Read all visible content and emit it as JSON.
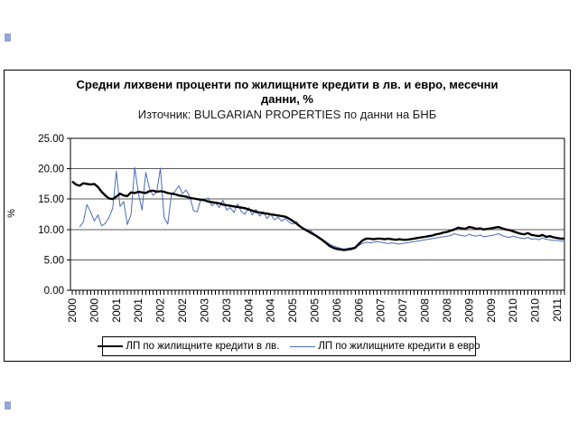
{
  "header": {
    "title_line1": "Средни лихвени проценти по жилищните кредити в лв. и евро, месечни",
    "title_line2": "данни, %",
    "source_line": "Източник: BULGARIAN PROPERTIES по данни на БНБ"
  },
  "y_axis_title": "%",
  "colors": {
    "bgn_line": "#000000",
    "eur_line": "#4a6bb5",
    "gridline": "#595959",
    "frame": "#000000"
  },
  "chart_data": {
    "type": "line",
    "title": "Средни лихвени проценти по жилищните кредити в лв. и евро, месечни данни, %",
    "subtitle": "Източник: BULGARIAN PROPERTIES по данни на БНБ",
    "xlabel": "",
    "ylabel": "%",
    "ylim": [
      0,
      25
    ],
    "ytick_step": 5,
    "ytick_labels": [
      "0.00",
      "5.00",
      "10.00",
      "15.00",
      "20.00",
      "25.00"
    ],
    "grid": "horizontal",
    "legend_position": "bottom",
    "x_unit": "month",
    "x_start": "2000-01",
    "x_end": "2011-03",
    "xtick_every_months": 6,
    "xtick_labels": [
      "2000",
      "2000",
      "2001",
      "2001",
      "2002",
      "2002",
      "2003",
      "2003",
      "2004",
      "2004",
      "2005",
      "2005",
      "2006",
      "2006",
      "2007",
      "2007",
      "2008",
      "2008",
      "2009",
      "2009",
      "2010",
      "2010",
      "2011"
    ],
    "series": [
      {
        "name": "ЛП по жилищните кредити в лв.",
        "color": "#000000",
        "width": 2.4,
        "values": [
          17.9,
          17.4,
          17.2,
          17.6,
          17.5,
          17.4,
          17.5,
          17.0,
          16.2,
          15.6,
          15.1,
          15.0,
          15.4,
          15.9,
          15.6,
          15.5,
          16.1,
          16.0,
          16.2,
          16.1,
          16.0,
          16.3,
          16.4,
          16.2,
          16.3,
          16.2,
          16.0,
          15.9,
          15.8,
          15.6,
          15.5,
          15.4,
          15.2,
          15.1,
          15.0,
          14.9,
          14.8,
          14.6,
          14.5,
          14.4,
          14.3,
          14.1,
          14.0,
          13.9,
          13.8,
          13.7,
          13.6,
          13.5,
          13.3,
          13.1,
          12.9,
          12.8,
          12.7,
          12.6,
          12.5,
          12.4,
          12.3,
          12.2,
          12.1,
          11.8,
          11.4,
          11.0,
          10.5,
          10.1,
          9.8,
          9.4,
          9.1,
          8.7,
          8.3,
          7.8,
          7.3,
          7.0,
          6.8,
          6.7,
          6.6,
          6.7,
          6.8,
          7.0,
          7.6,
          8.2,
          8.5,
          8.5,
          8.4,
          8.5,
          8.5,
          8.4,
          8.5,
          8.4,
          8.3,
          8.4,
          8.3,
          8.3,
          8.4,
          8.5,
          8.6,
          8.7,
          8.8,
          8.9,
          9.0,
          9.2,
          9.3,
          9.5,
          9.6,
          9.8,
          10.0,
          10.3,
          10.2,
          10.1,
          10.4,
          10.3,
          10.1,
          10.2,
          10.0,
          10.1,
          10.2,
          10.3,
          10.4,
          10.2,
          10.0,
          9.9,
          9.7,
          9.5,
          9.3,
          9.2,
          9.4,
          9.1,
          9.0,
          8.9,
          9.1,
          8.8,
          8.9,
          8.7,
          8.6,
          8.5,
          8.5
        ]
      },
      {
        "name": "ЛП по жилищните кредити в евро",
        "color": "#4a6bb5",
        "width": 1,
        "values": [
          null,
          null,
          10.4,
          11.2,
          14.1,
          12.9,
          11.4,
          12.4,
          10.6,
          11.0,
          12.0,
          13.5,
          19.6,
          13.8,
          14.6,
          10.8,
          12.5,
          20.2,
          16.0,
          13.2,
          19.4,
          16.8,
          15.6,
          16.2,
          20.1,
          12.0,
          10.9,
          15.8,
          16.3,
          17.2,
          15.9,
          16.5,
          15.4,
          13.1,
          12.9,
          15.0,
          14.8,
          15.2,
          13.9,
          14.4,
          13.6,
          14.8,
          13.2,
          13.6,
          12.8,
          14.2,
          13.0,
          12.5,
          13.6,
          12.4,
          13.3,
          12.2,
          12.9,
          11.8,
          12.5,
          11.6,
          12.0,
          11.4,
          11.8,
          11.2,
          10.9,
          11.3,
          10.4,
          10.0,
          9.6,
          9.8,
          9.2,
          8.8,
          8.4,
          8.0,
          7.6,
          7.3,
          7.1,
          6.9,
          6.8,
          6.9,
          7.0,
          7.1,
          7.4,
          7.7,
          7.9,
          7.8,
          7.9,
          8.0,
          7.9,
          7.8,
          7.7,
          7.8,
          7.7,
          7.6,
          7.7,
          7.8,
          7.9,
          8.0,
          8.1,
          8.2,
          8.3,
          8.4,
          8.5,
          8.6,
          8.7,
          8.8,
          8.9,
          9.0,
          9.3,
          9.1,
          9.0,
          8.9,
          9.2,
          9.0,
          8.9,
          9.1,
          8.8,
          8.9,
          9.0,
          9.1,
          9.3,
          9.0,
          8.8,
          8.7,
          8.9,
          8.7,
          8.6,
          8.5,
          8.7,
          8.4,
          8.5,
          8.3,
          8.6,
          8.4,
          8.3,
          8.2,
          8.2,
          8.1,
          8.1
        ]
      }
    ]
  }
}
